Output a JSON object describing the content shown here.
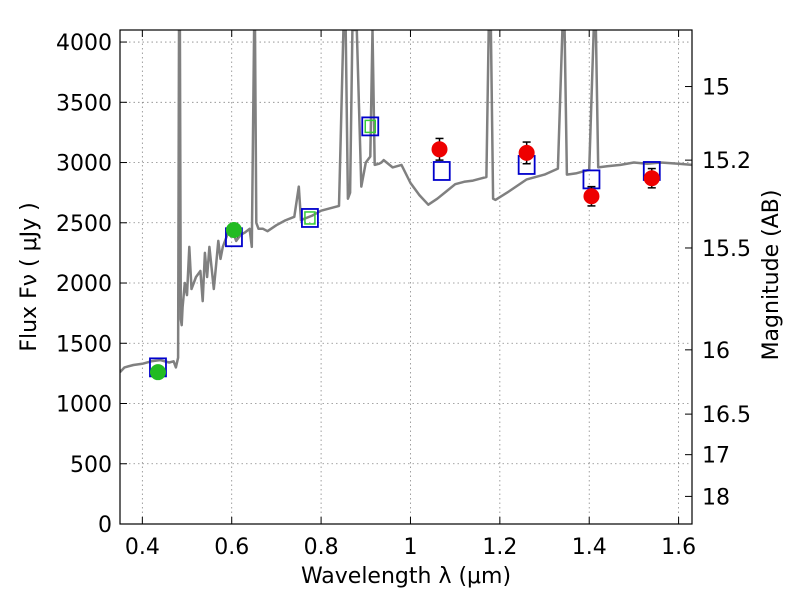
{
  "chart_data": {
    "type": "scatter",
    "xlabel": "Wavelength  λ (μm)",
    "ylabel": "Flux  Fν  ( μJy )",
    "y2label": "Magnitude (AB)",
    "xlim": [
      0.35,
      1.63
    ],
    "ylim": [
      0,
      4100
    ],
    "grid": true,
    "x_ticks": [
      0.4,
      0.6,
      0.8,
      1.0,
      1.2,
      1.4,
      1.6
    ],
    "x_tick_labels": [
      "0.4",
      "0.6",
      "0.8",
      "1",
      "1.2",
      "1.4",
      "1.6"
    ],
    "y_ticks": [
      0,
      500,
      1000,
      1500,
      2000,
      2500,
      3000,
      3500,
      4000
    ],
    "y_tick_labels": [
      "0",
      "500",
      "1000",
      "1500",
      "2000",
      "2500",
      "3000",
      "3500",
      "4000"
    ],
    "y2_ticks": [
      15,
      15.2,
      15.5,
      16,
      16.5,
      17,
      18
    ],
    "y2_tick_labels": [
      "15",
      "15.2",
      "15.5",
      "16",
      "16.5",
      "17",
      "18"
    ],
    "colors": {
      "spectrum": "#808080",
      "model_box": "#0000cc",
      "green_box": "#33cc33",
      "green_points": "#22bb22",
      "red_points": "#ee0000",
      "grid": "#888888"
    },
    "spectrum": {
      "x": [
        0.35,
        0.36,
        0.38,
        0.4,
        0.42,
        0.44,
        0.45,
        0.46,
        0.47,
        0.475,
        0.48,
        0.482,
        0.484,
        0.486,
        0.488,
        0.49,
        0.495,
        0.5,
        0.505,
        0.51,
        0.52,
        0.53,
        0.535,
        0.54,
        0.545,
        0.55,
        0.56,
        0.565,
        0.57,
        0.575,
        0.58,
        0.59,
        0.6,
        0.61,
        0.62,
        0.63,
        0.64,
        0.645,
        0.65,
        0.652,
        0.655,
        0.66,
        0.67,
        0.68,
        0.7,
        0.72,
        0.74,
        0.75,
        0.755,
        0.76,
        0.78,
        0.8,
        0.82,
        0.84,
        0.85,
        0.855,
        0.86,
        0.865,
        0.87,
        0.88,
        0.89,
        0.9,
        0.91,
        0.915,
        0.92,
        0.93,
        0.935,
        0.94,
        0.96,
        0.98,
        1.0,
        1.02,
        1.04,
        1.06,
        1.08,
        1.1,
        1.12,
        1.14,
        1.16,
        1.17,
        1.175,
        1.18,
        1.185,
        1.19,
        1.22,
        1.26,
        1.3,
        1.33,
        1.34,
        1.345,
        1.35,
        1.37,
        1.4,
        1.41,
        1.415,
        1.42,
        1.44,
        1.47,
        1.5,
        1.53,
        1.56,
        1.6,
        1.63
      ],
      "y": [
        1260,
        1300,
        1320,
        1330,
        1350,
        1360,
        1350,
        1340,
        1350,
        1300,
        1380,
        4100,
        4100,
        1700,
        1650,
        1800,
        2000,
        1900,
        2300,
        1950,
        2050,
        2100,
        1850,
        2250,
        2050,
        2300,
        1950,
        2150,
        2350,
        2200,
        2300,
        2400,
        2450,
        2350,
        2400,
        2420,
        2450,
        2300,
        4100,
        4100,
        2500,
        2450,
        2450,
        2430,
        2480,
        2520,
        2550,
        2800,
        2520,
        2530,
        2560,
        2600,
        2620,
        2640,
        4100,
        4100,
        2700,
        2750,
        4100,
        4100,
        2800,
        3000,
        3050,
        4100,
        2980,
        2990,
        3000,
        3020,
        2960,
        2980,
        2830,
        2730,
        2650,
        2700,
        2760,
        2820,
        2840,
        2850,
        2870,
        2880,
        4100,
        4100,
        2700,
        2690,
        2760,
        2860,
        2900,
        2950,
        4100,
        4100,
        2900,
        2910,
        2940,
        4100,
        4100,
        2960,
        2970,
        2980,
        3000,
        2990,
        3000,
        2990,
        2980
      ]
    },
    "model_boxes": [
      {
        "x": 0.435,
        "y": 1300,
        "color": "model_box"
      },
      {
        "x": 0.605,
        "y": 2380,
        "color": "model_box"
      },
      {
        "x": 0.775,
        "y": 2540,
        "color": "model_box"
      },
      {
        "x": 0.91,
        "y": 3300,
        "color": "model_box"
      },
      {
        "x": 1.07,
        "y": 2930,
        "color": "model_box"
      },
      {
        "x": 1.26,
        "y": 2980,
        "color": "model_box"
      },
      {
        "x": 1.405,
        "y": 2860,
        "color": "model_box"
      },
      {
        "x": 1.54,
        "y": 2930,
        "color": "model_box"
      }
    ],
    "green_boxes": [
      {
        "x": 0.775,
        "y": 2540
      },
      {
        "x": 0.91,
        "y": 3300
      }
    ],
    "series": [
      {
        "color": "green_points",
        "points": [
          {
            "x": 0.435,
            "y": 1260,
            "err": 45
          },
          {
            "x": 0.605,
            "y": 2440,
            "err": 55
          }
        ]
      },
      {
        "color": "red_points",
        "points": [
          {
            "x": 1.065,
            "y": 3110,
            "err": 90
          },
          {
            "x": 1.26,
            "y": 3080,
            "err": 90
          },
          {
            "x": 1.405,
            "y": 2720,
            "err": 80
          },
          {
            "x": 1.54,
            "y": 2870,
            "err": 80
          }
        ]
      }
    ]
  }
}
